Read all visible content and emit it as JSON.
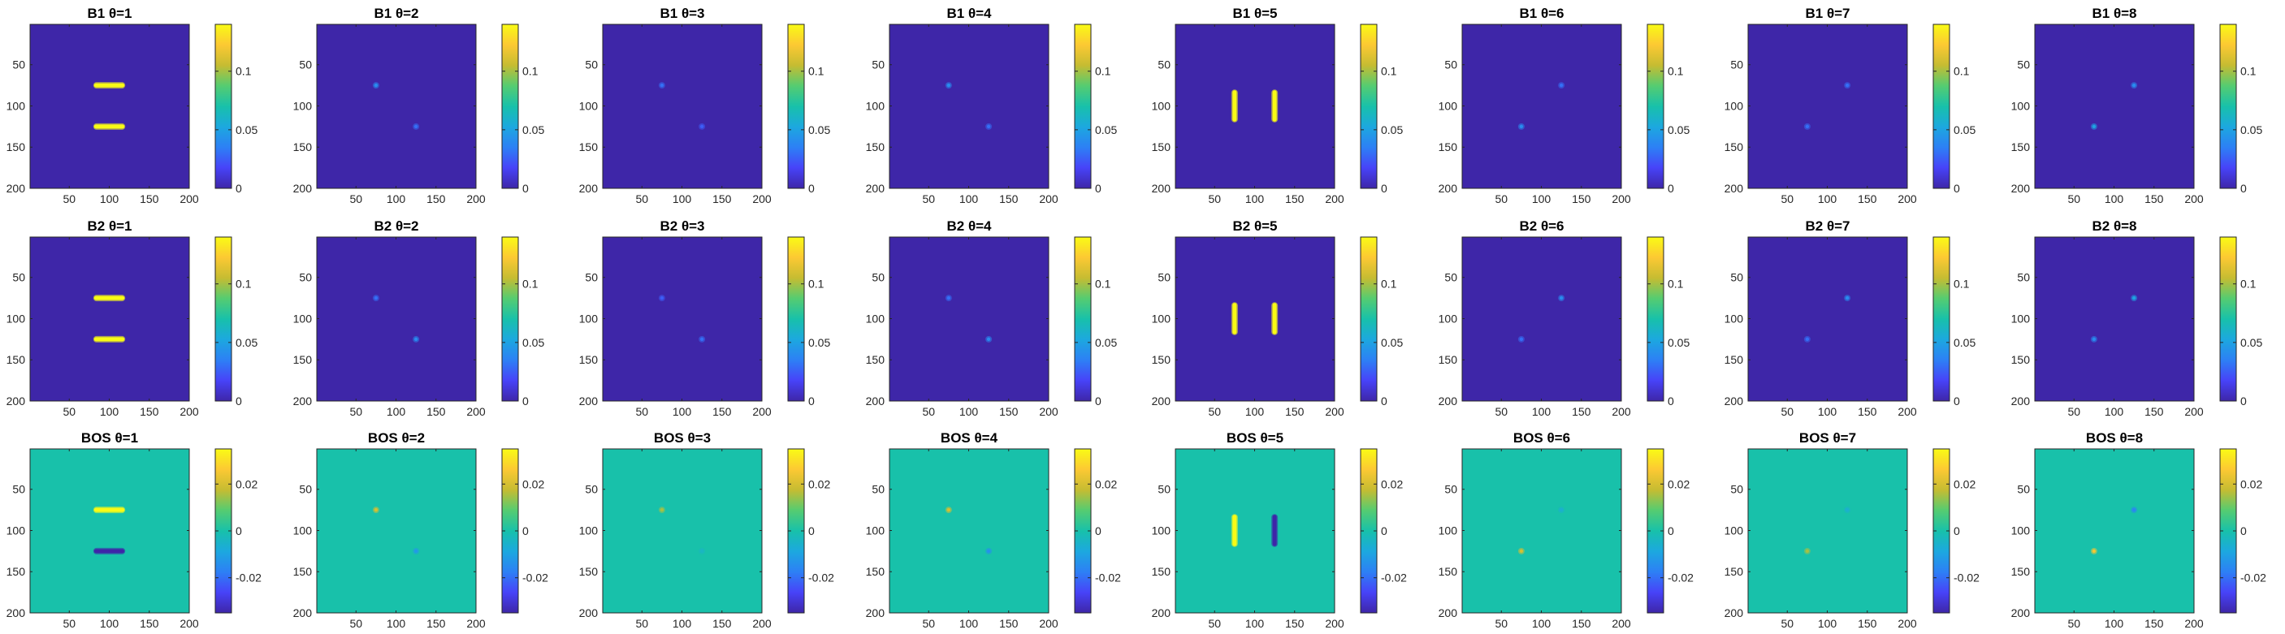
{
  "colormap": [
    "#3e26a8",
    "#4743f8",
    "#2d80f5",
    "#1ca8df",
    "#18c1aa",
    "#55cc71",
    "#c6bc32",
    "#fcc933",
    "#f9fb15"
  ],
  "chart_data": {
    "type": "heatmap",
    "layout": "3 rows x 8 columns of image panels, each with its own colorbar",
    "x_ticks": [
      "50",
      "100",
      "150",
      "200"
    ],
    "y_ticks": [
      "50",
      "100",
      "150",
      "200"
    ],
    "xlim": [
      1,
      200
    ],
    "ylim": [
      1,
      200
    ],
    "grid": false,
    "rows": [
      {
        "name": "B1",
        "clim": [
          0,
          0.14
        ],
        "cbar_ticks": [
          {
            "v": 0,
            "label": "0"
          },
          {
            "v": 0.05,
            "label": "0.05"
          },
          {
            "v": 0.1,
            "label": "0.1"
          }
        ],
        "panels": [
          {
            "title": "B1 θ=1",
            "features": [
              {
                "kind": "hbar",
                "x0": 80,
                "x1": 120,
                "y": 75,
                "value": 0.14
              },
              {
                "kind": "hbar",
                "x0": 80,
                "x1": 120,
                "y": 125,
                "value": 0.14
              }
            ]
          },
          {
            "title": "B1 θ=2",
            "features": [
              {
                "kind": "dot",
                "x": 75,
                "y": 75,
                "value": 0.04
              },
              {
                "kind": "dot",
                "x": 125,
                "y": 125,
                "value": 0.03
              }
            ]
          },
          {
            "title": "B1 θ=3",
            "features": [
              {
                "kind": "dot",
                "x": 75,
                "y": 75,
                "value": 0.03
              },
              {
                "kind": "dot",
                "x": 125,
                "y": 125,
                "value": 0.025
              }
            ]
          },
          {
            "title": "B1 θ=4",
            "features": [
              {
                "kind": "dot",
                "x": 75,
                "y": 75,
                "value": 0.04
              },
              {
                "kind": "dot",
                "x": 125,
                "y": 125,
                "value": 0.03
              }
            ]
          },
          {
            "title": "B1 θ=5",
            "features": [
              {
                "kind": "vbar",
                "y0": 80,
                "y1": 120,
                "x": 75,
                "value": 0.14
              },
              {
                "kind": "vbar",
                "y0": 80,
                "y1": 120,
                "x": 125,
                "value": 0.14
              }
            ]
          },
          {
            "title": "B1 θ=6",
            "features": [
              {
                "kind": "dot",
                "x": 125,
                "y": 75,
                "value": 0.03
              },
              {
                "kind": "dot",
                "x": 75,
                "y": 125,
                "value": 0.04
              }
            ]
          },
          {
            "title": "B1 θ=7",
            "features": [
              {
                "kind": "dot",
                "x": 125,
                "y": 75,
                "value": 0.03
              },
              {
                "kind": "dot",
                "x": 75,
                "y": 125,
                "value": 0.03
              }
            ]
          },
          {
            "title": "B1 θ=8",
            "features": [
              {
                "kind": "dot",
                "x": 125,
                "y": 75,
                "value": 0.04
              },
              {
                "kind": "dot",
                "x": 75,
                "y": 125,
                "value": 0.05
              }
            ]
          }
        ]
      },
      {
        "name": "B2",
        "clim": [
          0,
          0.14
        ],
        "cbar_ticks": [
          {
            "v": 0,
            "label": "0"
          },
          {
            "v": 0.05,
            "label": "0.05"
          },
          {
            "v": 0.1,
            "label": "0.1"
          }
        ],
        "panels": [
          {
            "title": "B2 θ=1",
            "features": [
              {
                "kind": "hbar",
                "x0": 80,
                "x1": 120,
                "y": 75,
                "value": 0.14
              },
              {
                "kind": "hbar",
                "x0": 80,
                "x1": 120,
                "y": 125,
                "value": 0.14
              }
            ]
          },
          {
            "title": "B2 θ=2",
            "features": [
              {
                "kind": "dot",
                "x": 75,
                "y": 75,
                "value": 0.03
              },
              {
                "kind": "dot",
                "x": 125,
                "y": 125,
                "value": 0.04
              }
            ]
          },
          {
            "title": "B2 θ=3",
            "features": [
              {
                "kind": "dot",
                "x": 75,
                "y": 75,
                "value": 0.025
              },
              {
                "kind": "dot",
                "x": 125,
                "y": 125,
                "value": 0.03
              }
            ]
          },
          {
            "title": "B2 θ=4",
            "features": [
              {
                "kind": "dot",
                "x": 75,
                "y": 75,
                "value": 0.03
              },
              {
                "kind": "dot",
                "x": 125,
                "y": 125,
                "value": 0.04
              }
            ]
          },
          {
            "title": "B2 θ=5",
            "features": [
              {
                "kind": "vbar",
                "y0": 80,
                "y1": 120,
                "x": 75,
                "value": 0.14
              },
              {
                "kind": "vbar",
                "y0": 80,
                "y1": 120,
                "x": 125,
                "value": 0.14
              }
            ]
          },
          {
            "title": "B2 θ=6",
            "features": [
              {
                "kind": "dot",
                "x": 125,
                "y": 75,
                "value": 0.04
              },
              {
                "kind": "dot",
                "x": 75,
                "y": 125,
                "value": 0.03
              }
            ]
          },
          {
            "title": "B2 θ=7",
            "features": [
              {
                "kind": "dot",
                "x": 125,
                "y": 75,
                "value": 0.04
              },
              {
                "kind": "dot",
                "x": 75,
                "y": 125,
                "value": 0.03
              }
            ]
          },
          {
            "title": "B2 θ=8",
            "features": [
              {
                "kind": "dot",
                "x": 125,
                "y": 75,
                "value": 0.05
              },
              {
                "kind": "dot",
                "x": 75,
                "y": 125,
                "value": 0.04
              }
            ]
          }
        ]
      },
      {
        "name": "BOS",
        "clim": [
          -0.035,
          0.035
        ],
        "cbar_ticks": [
          {
            "v": -0.02,
            "label": "-0.02"
          },
          {
            "v": 0,
            "label": "0"
          },
          {
            "v": 0.02,
            "label": "0.02"
          }
        ],
        "panels": [
          {
            "title": "BOS θ=1",
            "features": [
              {
                "kind": "hbar",
                "x0": 80,
                "x1": 120,
                "y": 75,
                "value": 0.035
              },
              {
                "kind": "hbar",
                "x0": 80,
                "x1": 120,
                "y": 125,
                "value": -0.035
              }
            ]
          },
          {
            "title": "BOS θ=2",
            "features": [
              {
                "kind": "dot",
                "x": 75,
                "y": 75,
                "value": 0.02
              },
              {
                "kind": "dot",
                "x": 125,
                "y": 125,
                "value": -0.012
              }
            ]
          },
          {
            "title": "BOS θ=3",
            "features": [
              {
                "kind": "dot",
                "x": 75,
                "y": 75,
                "value": 0.015
              },
              {
                "kind": "dot",
                "x": 125,
                "y": 125,
                "value": -0.004
              }
            ]
          },
          {
            "title": "BOS θ=4",
            "features": [
              {
                "kind": "dot",
                "x": 75,
                "y": 75,
                "value": 0.02
              },
              {
                "kind": "dot",
                "x": 125,
                "y": 125,
                "value": -0.014
              }
            ]
          },
          {
            "title": "BOS θ=5",
            "features": [
              {
                "kind": "vbar",
                "y0": 80,
                "y1": 120,
                "x": 75,
                "value": 0.035
              },
              {
                "kind": "vbar",
                "y0": 80,
                "y1": 120,
                "x": 125,
                "value": -0.035
              }
            ]
          },
          {
            "title": "BOS θ=6",
            "features": [
              {
                "kind": "dot",
                "x": 125,
                "y": 75,
                "value": -0.006
              },
              {
                "kind": "dot",
                "x": 75,
                "y": 125,
                "value": 0.02
              }
            ]
          },
          {
            "title": "BOS θ=7",
            "features": [
              {
                "kind": "dot",
                "x": 125,
                "y": 75,
                "value": -0.006
              },
              {
                "kind": "dot",
                "x": 75,
                "y": 125,
                "value": 0.015
              }
            ]
          },
          {
            "title": "BOS θ=8",
            "features": [
              {
                "kind": "dot",
                "x": 125,
                "y": 75,
                "value": -0.016
              },
              {
                "kind": "dot",
                "x": 75,
                "y": 125,
                "value": 0.025
              }
            ]
          }
        ]
      }
    ]
  }
}
